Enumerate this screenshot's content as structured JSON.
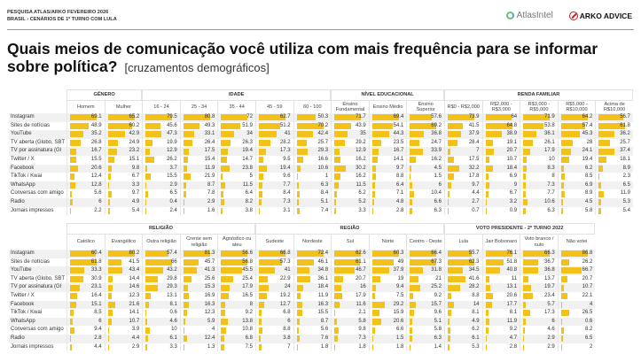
{
  "header": {
    "line1": "PESQUISA ATLAS/ARKO FEVEREIRO 2026",
    "line2": "BRASIL › CENÁRIOS DE 1º TURNO COM LULA",
    "logo_atlas": "AtlasIntel",
    "logo_arko": "ARKO ADVICE"
  },
  "title": {
    "main": "Quais meios de comunicação você utiliza com mais frequência para se informar sobre política?",
    "sub": "[cruzamentos demográficos]"
  },
  "colors": {
    "bar": "#f2c21b",
    "stripe": "#f1f1f1"
  },
  "rows": [
    "Instagram",
    "Sites de notícias",
    "YouTube",
    "TV aberta (Globo, SBT",
    "TV por assinatura (Gl",
    "Twitter / X",
    "Facebook",
    "TikTok / Kwai",
    "WhatsApp",
    "Conversas com amigo",
    "Radio",
    "Jornais impressos"
  ],
  "tables": [
    {
      "groups": [
        {
          "label": "GÊNERO",
          "columns": [
            {
              "label": "Homem",
              "values": [
                69.1,
                48.9,
                35.2,
                26.8,
                16.7,
                15.5,
                20.6,
                12.4,
                12.8,
                5.6,
                6,
                2.2
              ]
            },
            {
              "label": "Mulher",
              "values": [
                65.2,
                60.2,
                42.9,
                24.9,
                23.2,
                15.1,
                9.8,
                6.7,
                3.3,
                9.7,
                4.9,
                5.4
              ]
            }
          ]
        },
        {
          "label": "IDADE",
          "columns": [
            {
              "label": "16 - 24",
              "values": [
                79.5,
                45.6,
                47.3,
                19.9,
                12.9,
                26.2,
                3.7,
                15.5,
                2.9,
                6.5,
                0.4,
                2.4
              ]
            },
            {
              "label": "25 - 34",
              "values": [
                80.8,
                49.3,
                33.1,
                26.4,
                17.5,
                15.4,
                11.9,
                21.9,
                8.7,
                7.8,
                2.9,
                1.6
              ]
            },
            {
              "label": "35 - 44",
              "values": [
                72,
                51.9,
                34,
                26.3,
                19.4,
                14.7,
                23.8,
                5,
                11.5,
                6.4,
                8.2,
                3.8
              ]
            },
            {
              "label": "45 - 59",
              "values": [
                62.7,
                51.2,
                41,
                28.2,
                17.3,
                9.5,
                19.4,
                9.6,
                7.7,
                8.4,
                7.3,
                3.1
              ]
            },
            {
              "label": "60 - 100",
              "values": [
                50.3,
                70.2,
                42.4,
                25.7,
                29.3,
                16.6,
                10.6,
                1,
                6.3,
                8.4,
                5.1,
                7.4
              ]
            }
          ]
        },
        {
          "label": "NÍVEL EDUCACIONAL",
          "columns": [
            {
              "label": "Ensino Fundamental",
              "values": [
                71.7,
                43.9,
                35,
                29.2,
                12.9,
                16.2,
                30.2,
                16.2,
                11.5,
                6.2,
                5.2,
                3.3
              ]
            },
            {
              "label": "Ensino Médio",
              "values": [
                69.4,
                54.1,
                44.3,
                23.5,
                16.7,
                14.1,
                9.7,
                8.8,
                6.4,
                7.1,
                4.8,
                2.8
              ]
            },
            {
              "label": "Ensino Superior",
              "values": [
                57.6,
                69.2,
                36.8,
                24.7,
                33.9,
                16.2,
                4.5,
                1.5,
                6,
                10.4,
                6.6,
                6.3
              ]
            }
          ]
        },
        {
          "label": "RENDA FAMILIAR",
          "columns": [
            {
              "label": "R$0 - R$2,000",
              "values": [
                73.9,
                41.5,
                37.9,
                28.4,
                7,
                17.5,
                32.2,
                17.8,
                9.7,
                4.4,
                2.7,
                0.7
              ]
            },
            {
              "label": "R$2,000 - R$3,000",
              "values": [
                64,
                64.8,
                38.9,
                19.1,
                20.7,
                10.7,
                18.4,
                6.9,
                9,
                6.7,
                3.2,
                0.9
              ]
            },
            {
              "label": "R$3,000 - R$5,000",
              "values": [
                71.9,
                53.8,
                36.1,
                26.1,
                17.9,
                10,
                8.3,
                8,
                7.3,
                7.7,
                10.6,
                6.3
              ]
            },
            {
              "label": "R$5,000 - R$10,000",
              "values": [
                64.2,
                57.4,
                45.3,
                28,
                24.1,
                19.4,
                6.2,
                8.5,
                6.9,
                8.9,
                4.5,
                5.8
              ]
            },
            {
              "label": "Acima de R$10,000",
              "values": [
                56.7,
                61.8,
                36.2,
                25.7,
                37.4,
                18.1,
                8.9,
                2.3,
                6.5,
                11.9,
                5.3,
                5.4
              ]
            }
          ]
        }
      ]
    },
    {
      "groups": [
        {
          "label": "RELIGIÃO",
          "columns": [
            {
              "label": "Católico",
              "values": [
                60.4,
                61.8,
                33.3,
                30.9,
                23.1,
                16.4,
                15.1,
                8.5,
                6,
                9.4,
                2.8,
                4.4
              ]
            },
            {
              "label": "Evangélico",
              "values": [
                80.2,
                41.5,
                43.4,
                14.4,
                14.6,
                12.3,
                21.6,
                14.1,
                10.7,
                3.9,
                4.4,
                2.9
              ]
            },
            {
              "label": "Outra religião",
              "values": [
                57.4,
                66,
                43.2,
                29.8,
                29.3,
                13.1,
                8.1,
                0.6,
                4.6,
                10,
                6.1,
                3.3
              ]
            },
            {
              "label": "Crente sem religião",
              "values": [
                81.3,
                45.7,
                41.3,
                25.6,
                15.3,
                16.9,
                16.3,
                12.3,
                5.9,
                4,
                12.4,
                1.3
              ]
            },
            {
              "label": "Agnóstico ou ateu",
              "values": [
                56.6,
                56.8,
                45.5,
                25.4,
                17.9,
                16.5,
                8,
                9.2,
                13.8,
                10.8,
                6.8,
                7.5
              ]
            }
          ]
        },
        {
          "label": "REGIÃO",
          "columns": [
            {
              "label": "Sudeste",
              "values": [
                66.8,
                57.3,
                41,
                22.9,
                24,
                19.2,
                12.7,
                6.8,
                6,
                8.8,
                3.8,
                7
              ]
            },
            {
              "label": "Nordeste",
              "values": [
                72.4,
                46.1,
                34.8,
                36.1,
                18.4,
                11.9,
                16.3,
                15.5,
                8.7,
                5.6,
                7.6,
                1.8
              ]
            },
            {
              "label": "Sul",
              "values": [
                62.6,
                61.1,
                46.7,
                20.7,
                16,
                17.9,
                11.6,
                2.1,
                5.8,
                9.8,
                7.3,
                1.8
              ]
            },
            {
              "label": "Norte",
              "values": [
                60.3,
                49,
                37.9,
                19,
                9.4,
                7.5,
                29.2,
                15.9,
                20.6,
                6.6,
                1.5,
                1.8
              ]
            },
            {
              "label": "Centro - Oeste",
              "values": [
                66.4,
                67.3,
                31.8,
                21,
                25.2,
                9.2,
                15.7,
                9.6,
                5.1,
                5.8,
                6.3,
                1.4
              ]
            }
          ]
        },
        {
          "label": "VOTO PRESIDENTE - 2º TURNO 2022",
          "columns": [
            {
              "label": "Lula",
              "values": [
                55.7,
                62.3,
                34.5,
                41.6,
                28.2,
                8.8,
                14,
                8.1,
                4.9,
                6.2,
                6.1,
                5.3
              ]
            },
            {
              "label": "Jair Bolsonaro",
              "values": [
                76.1,
                51.8,
                40.8,
                11,
                13.1,
                20.6,
                17.7,
                8.1,
                11.9,
                9.2,
                4.7,
                2.8
              ]
            },
            {
              "label": "Voto branco / nulo",
              "values": [
                66.3,
                36.7,
                36.8,
                13.7,
                19.7,
                23.4,
                5.7,
                17.3,
                6,
                4.6,
                2.9,
                2.9
              ]
            },
            {
              "label": "Não votei",
              "values": [
                86.8,
                26.2,
                66.7,
                20.7,
                10.7,
                22.1,
                4,
                26.5,
                0.6,
                8.2,
                6.5,
                2
              ]
            }
          ]
        }
      ]
    }
  ]
}
